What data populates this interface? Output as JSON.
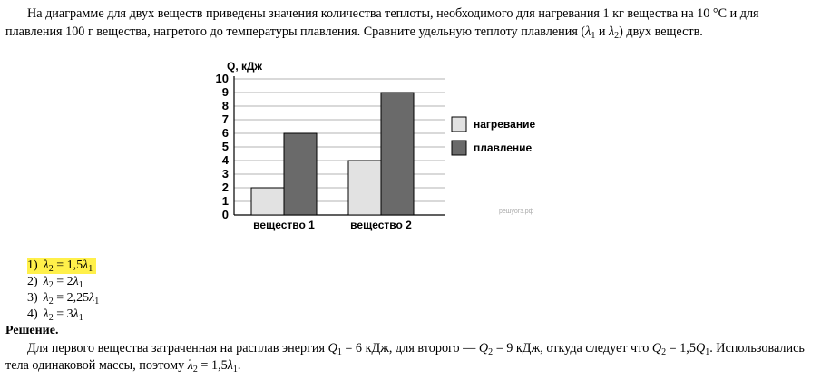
{
  "problem": {
    "text": "На диаграмме для двух веществ приведены значения количества теплоты, необходимого для нагревания 1 кг вещества на 10 °С и для плавления 100 г вещества, нагретого до температуры плавления. Сравните удельную теплоту плавления (",
    "lambda1": "λ",
    "sub1": "1",
    "and": " и ",
    "lambda2": "λ",
    "sub2": "2",
    "tail": ") двух веществ."
  },
  "chart_data": {
    "type": "bar",
    "categories": [
      "вещество 1",
      "вещество 2"
    ],
    "series": [
      {
        "name": "нагревание",
        "values": [
          2,
          4
        ],
        "color": "#e2e2e2"
      },
      {
        "name": "плавление",
        "values": [
          6,
          9
        ],
        "color": "#6a6a6a"
      }
    ],
    "ylabel": "Q, кДж",
    "ylim": [
      0,
      10
    ],
    "yticks": [
      "0",
      "1",
      "2",
      "3",
      "4",
      "5",
      "6",
      "7",
      "8",
      "9",
      "10"
    ],
    "grid": true,
    "legend": "right",
    "watermark": "решуогэ.рф"
  },
  "answers": [
    {
      "num": "1)",
      "lhs": "λ",
      "lsub": "2",
      "eq": " = 1,5",
      "rhs": "λ",
      "rsub": "1",
      "highlight": true
    },
    {
      "num": "2)",
      "lhs": "λ",
      "lsub": "2",
      "eq": " = 2",
      "rhs": "λ",
      "rsub": "1",
      "highlight": false
    },
    {
      "num": "3)",
      "lhs": "λ",
      "lsub": "2",
      "eq": " = 2,25",
      "rhs": "λ",
      "rsub": "1",
      "highlight": false
    },
    {
      "num": "4)",
      "lhs": "λ",
      "lsub": "2",
      "eq": " = 3",
      "rhs": "λ",
      "rsub": "1",
      "highlight": false
    }
  ],
  "solution": {
    "heading": "Решение.",
    "p1": "Для первого вещества затраченная на расплав энергия ",
    "q": "Q",
    "s1": "1",
    "p2": " = 6 кДж, для второго — ",
    "s2": "2",
    "p3": " = 9 кДж, откуда следует что ",
    "s3": "2",
    "p4": " = 1,5",
    "s4": "1",
    "p5": ". Использовались тела одинаковой массы, поэтому ",
    "l": "λ",
    "s5": "2",
    "p6": " = 1,5",
    "s6": "1",
    "p7": "."
  },
  "colors": {
    "highlight": "#fff04a",
    "heating": "#e2e2e2",
    "melting": "#6a6a6a"
  }
}
